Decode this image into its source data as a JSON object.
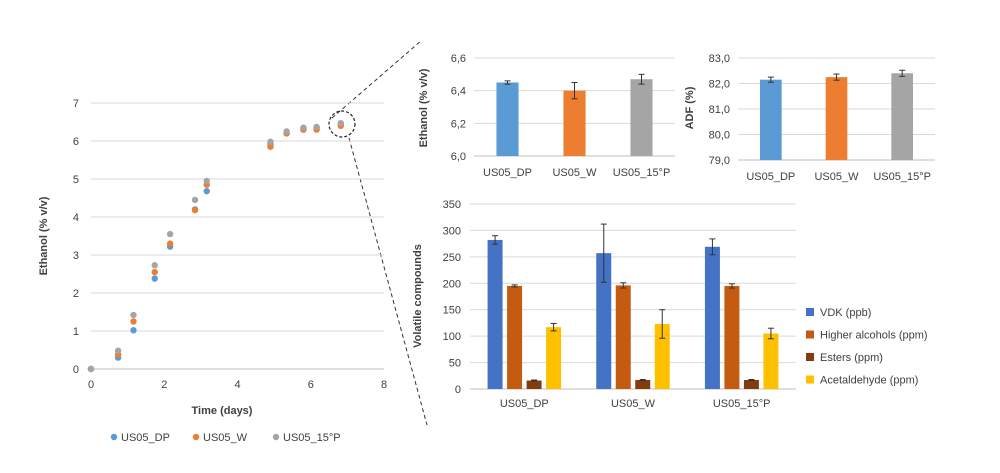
{
  "series_colors": {
    "US05_DP": "#5b9bd5",
    "US05_W": "#ed7d31",
    "US05_15°P": "#a5a5a5"
  },
  "chart_data": [
    {
      "type": "scatter",
      "title": "",
      "xlabel": "Time (days)",
      "ylabel": "Ethanol (% v/v)",
      "xlim": [
        0,
        8
      ],
      "ylim": [
        0,
        7
      ],
      "x_ticks": [
        0,
        2,
        4,
        6,
        8
      ],
      "y_ticks": [
        0,
        1,
        2,
        3,
        4,
        5,
        6,
        7
      ],
      "grid": "horizontal",
      "legend": "bottom",
      "series": [
        {
          "name": "US05_DP",
          "x": [
            0,
            0.74,
            1.16,
            1.74,
            2.16,
            2.84,
            3.16,
            4.9,
            5.34,
            5.8,
            6.16,
            6.82
          ],
          "y": [
            0,
            0.3,
            1.02,
            2.38,
            3.22,
            4.2,
            4.68,
            5.92,
            6.2,
            6.3,
            6.35,
            6.45
          ]
        },
        {
          "name": "US05_W",
          "x": [
            0,
            0.74,
            1.16,
            1.74,
            2.16,
            2.84,
            3.16,
            4.9,
            5.34,
            5.8,
            6.16,
            6.82
          ],
          "y": [
            0,
            0.38,
            1.25,
            2.55,
            3.3,
            4.18,
            4.85,
            5.85,
            6.2,
            6.3,
            6.3,
            6.4
          ]
        },
        {
          "name": "US05_15°P",
          "x": [
            0,
            0.74,
            1.16,
            1.74,
            2.16,
            2.84,
            3.16,
            4.9,
            5.34,
            5.8,
            6.16,
            6.82
          ],
          "y": [
            0,
            0.48,
            1.42,
            2.73,
            3.55,
            4.45,
            4.95,
            5.98,
            6.25,
            6.35,
            6.37,
            6.47
          ]
        }
      ]
    },
    {
      "type": "bar",
      "title": "",
      "xlabel": "",
      "ylabel": "Ethanol (% v/v)",
      "categories": [
        "US05_DP",
        "US05_W",
        "US05_15°P"
      ],
      "values": [
        6.45,
        6.4,
        6.47
      ],
      "errors": [
        0.01,
        0.05,
        0.03
      ],
      "ylim": [
        6.0,
        6.6
      ],
      "y_ticks": [
        "6,0",
        "6,2",
        "6,4",
        "6,6"
      ],
      "grid": "horizontal"
    },
    {
      "type": "bar",
      "title": "",
      "xlabel": "",
      "ylabel": "ADF (%)",
      "categories": [
        "US05_DP",
        "US05_W",
        "US05_15°P"
      ],
      "values": [
        82.15,
        82.25,
        82.4
      ],
      "errors": [
        0.1,
        0.12,
        0.12
      ],
      "ylim": [
        79.0,
        83.0
      ],
      "y_ticks": [
        "79,0",
        "80,0",
        "81,0",
        "82,0",
        "83,0"
      ],
      "grid": "horizontal"
    },
    {
      "type": "bar",
      "title": "",
      "xlabel": "",
      "ylabel": "Volatile compounds",
      "categories": [
        "US05_DP",
        "US05_W",
        "US05_15°P"
      ],
      "ylim": [
        0,
        350
      ],
      "y_ticks": [
        0,
        50,
        100,
        150,
        200,
        250,
        300,
        350
      ],
      "grid": "horizontal",
      "legend": "right",
      "series": [
        {
          "name": "VDK (ppb)",
          "color": "#4472c4",
          "values": [
            282,
            257,
            269
          ],
          "errors": [
            8,
            55,
            15
          ]
        },
        {
          "name": "Higher alcohols (ppm)",
          "color": "#c55a11",
          "values": [
            195,
            196,
            195
          ],
          "errors": [
            2,
            5,
            4
          ]
        },
        {
          "name": "Esters (ppm)",
          "color": "#843c0c",
          "values": [
            16,
            17,
            17
          ],
          "errors": [
            1,
            1,
            1
          ]
        },
        {
          "name": "Acetaldehyde (ppm)",
          "color": "#ffc000",
          "values": [
            117,
            123,
            105
          ],
          "errors": [
            7,
            27,
            10
          ]
        }
      ]
    }
  ]
}
